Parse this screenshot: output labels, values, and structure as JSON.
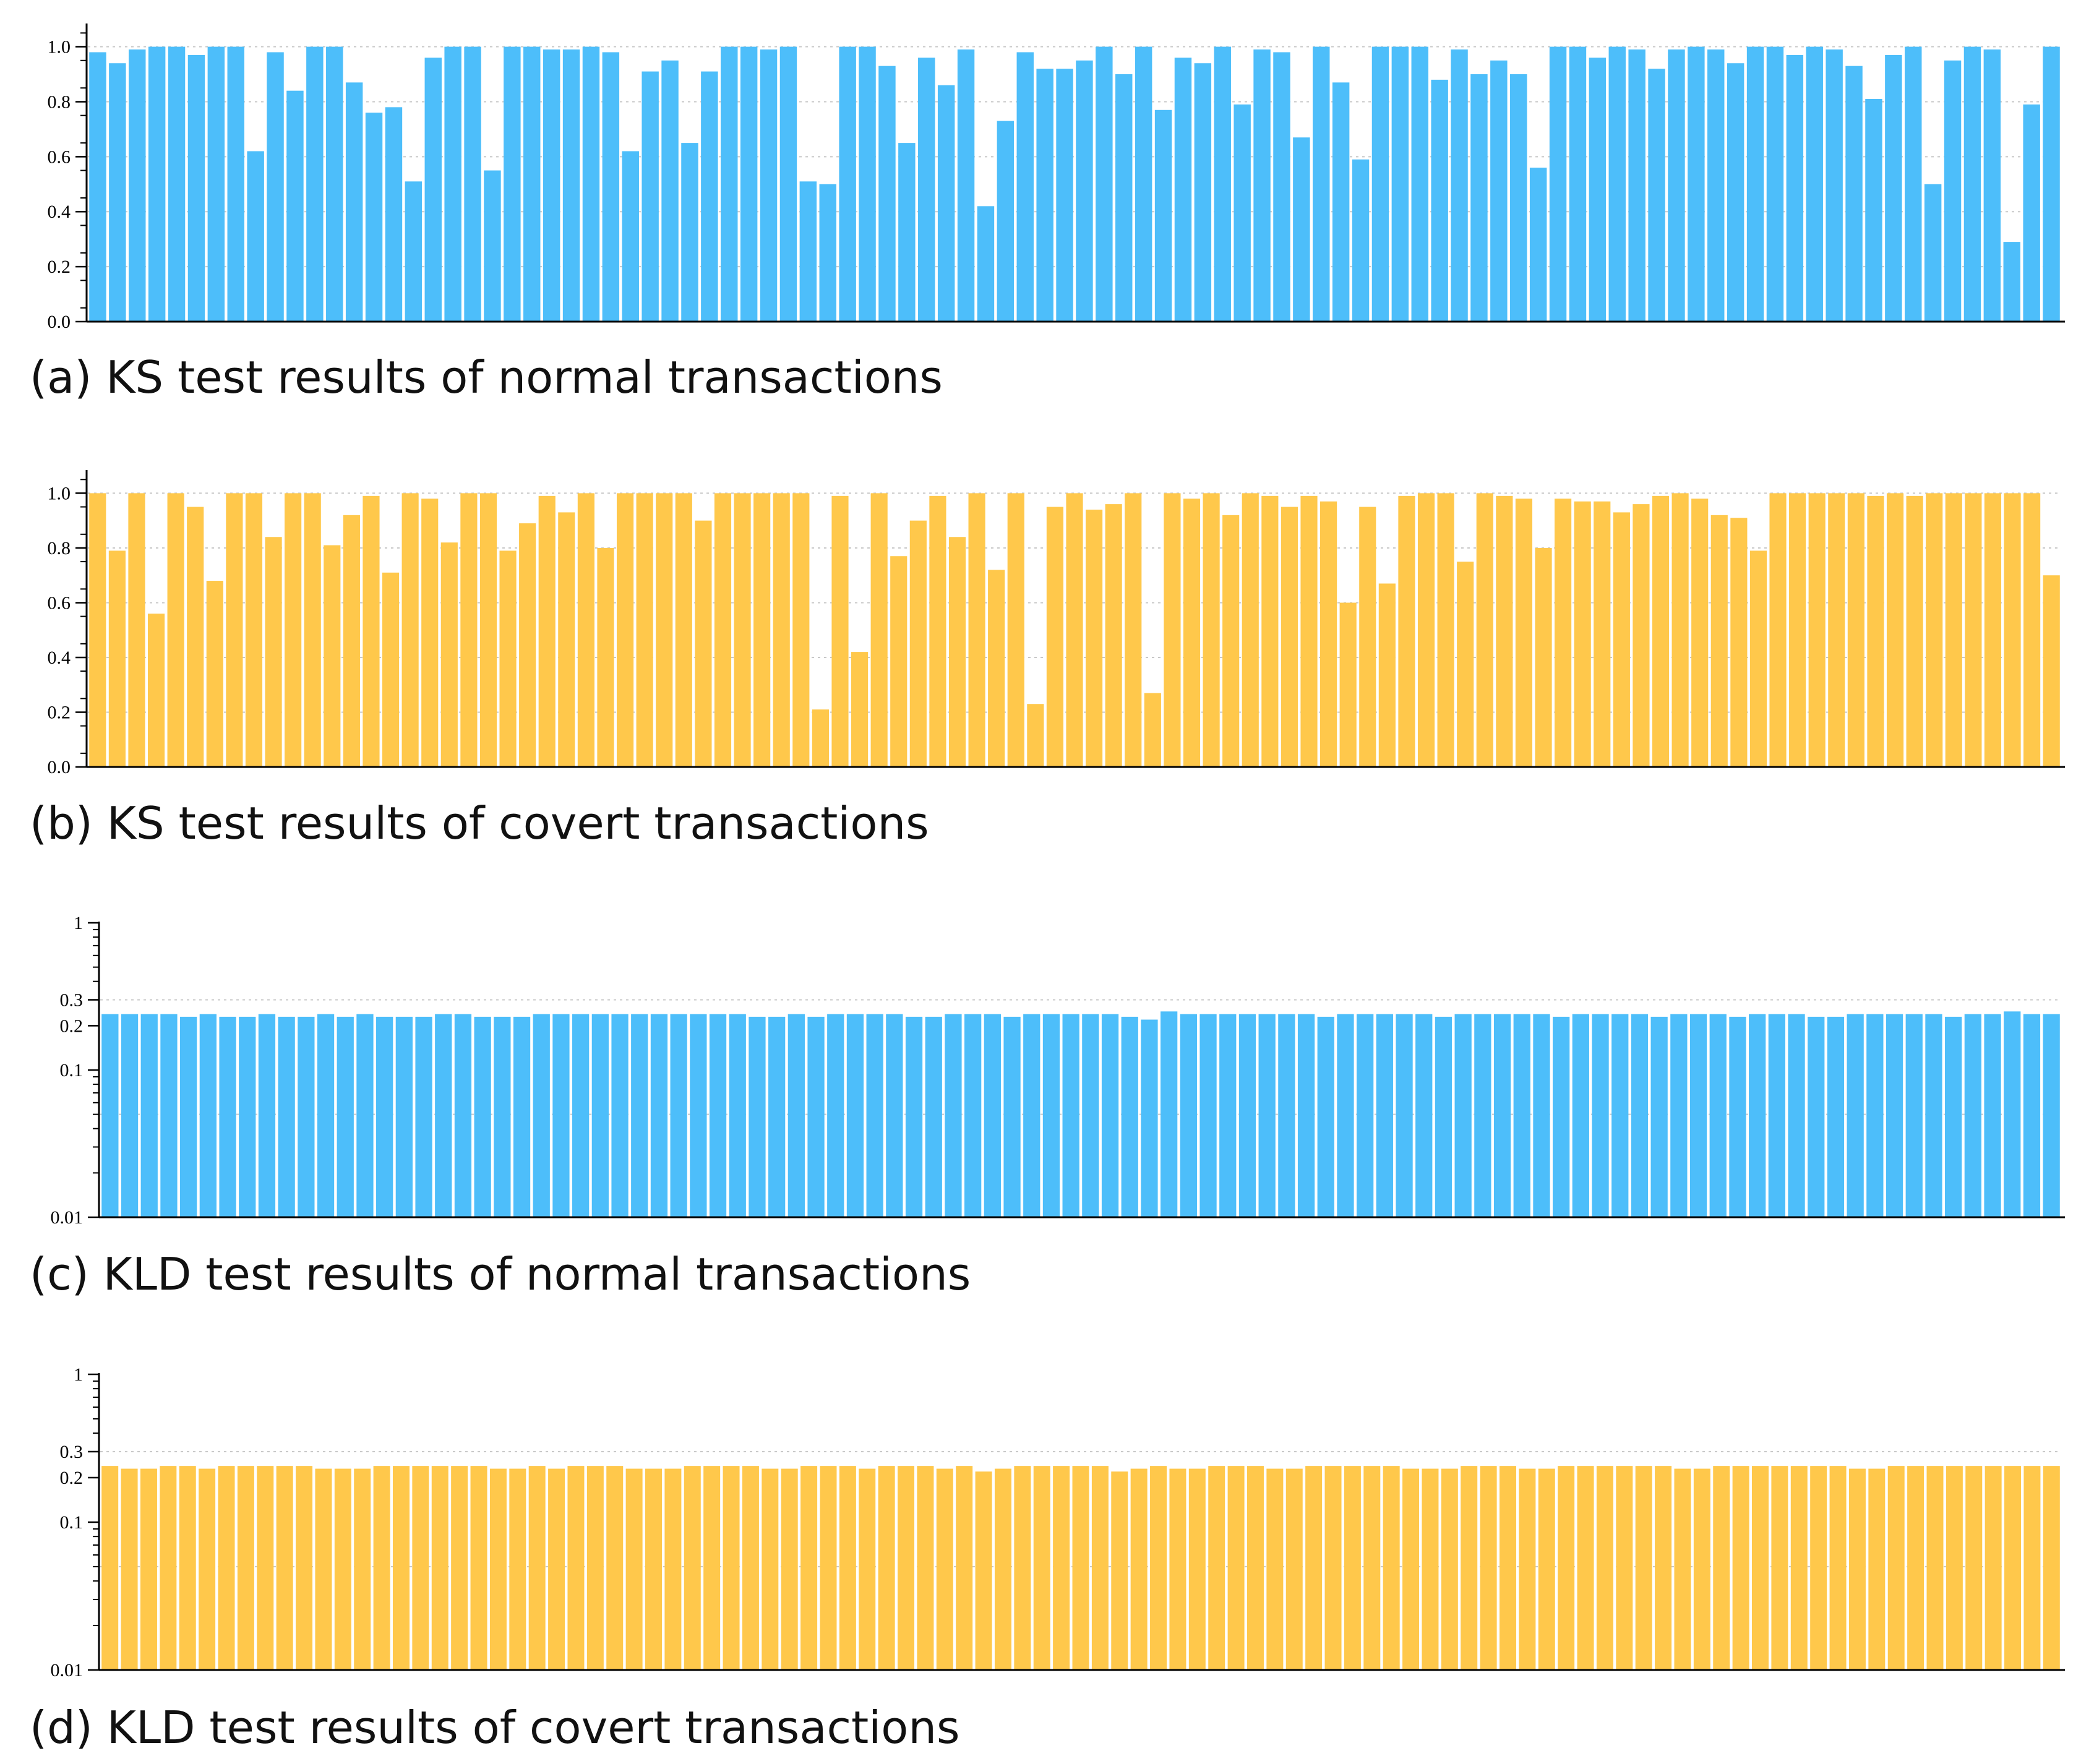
{
  "colors": {
    "blue": "#4DBEFA",
    "yellow": "#FFC84B",
    "axis": "#000000",
    "grid": "#C8C8C8"
  },
  "chart_data": [
    {
      "type": "bar",
      "caption": "(a) KS test results of normal transactions",
      "color": "#4DBEFA",
      "scale": "linear",
      "ylim": [
        0,
        1.08
      ],
      "yticks": [
        "0.0",
        "0.2",
        "0.4",
        "0.6",
        "0.8",
        "1.0"
      ],
      "grid": true,
      "values": [
        0.98,
        0.94,
        0.99,
        1.0,
        1.0,
        0.97,
        1.0,
        1.0,
        0.62,
        0.98,
        0.84,
        1.0,
        1.0,
        0.87,
        0.76,
        0.78,
        0.51,
        0.96,
        1.0,
        1.0,
        0.55,
        1.0,
        1.0,
        0.99,
        0.99,
        1.0,
        0.98,
        0.62,
        0.91,
        0.95,
        0.65,
        0.91,
        1.0,
        1.0,
        0.99,
        1.0,
        0.51,
        0.5,
        1.0,
        1.0,
        0.93,
        0.65,
        0.96,
        0.86,
        0.99,
        0.42,
        0.73,
        0.98,
        0.92,
        0.92,
        0.95,
        1.0,
        0.9,
        1.0,
        0.77,
        0.96,
        0.94,
        1.0,
        0.79,
        0.99,
        0.98,
        0.67,
        1.0,
        0.87,
        0.59,
        1.0,
        1.0,
        1.0,
        0.88,
        0.99,
        0.9,
        0.95,
        0.9,
        0.56,
        1.0,
        1.0,
        0.96,
        1.0,
        0.99,
        0.92,
        0.99,
        1.0,
        0.99,
        0.94,
        1.0,
        1.0,
        0.97,
        1.0,
        0.99,
        0.93,
        0.81,
        0.97,
        1.0,
        0.5,
        0.95,
        1.0,
        0.99,
        0.29,
        0.79,
        1.0
      ]
    },
    {
      "type": "bar",
      "caption": "(b) KS test results of covert transactions",
      "color": "#FFC84B",
      "scale": "linear",
      "ylim": [
        0,
        1.08
      ],
      "yticks": [
        "0.0",
        "0.2",
        "0.4",
        "0.6",
        "0.8",
        "1.0"
      ],
      "grid": true,
      "values": [
        1.0,
        0.79,
        1.0,
        0.56,
        1.0,
        0.95,
        0.68,
        1.0,
        1.0,
        0.84,
        1.0,
        1.0,
        0.81,
        0.92,
        0.99,
        0.71,
        1.0,
        0.98,
        0.82,
        1.0,
        1.0,
        0.79,
        0.89,
        0.99,
        0.93,
        1.0,
        0.8,
        1.0,
        1.0,
        1.0,
        1.0,
        0.9,
        1.0,
        1.0,
        1.0,
        1.0,
        1.0,
        0.21,
        0.99,
        0.42,
        1.0,
        0.77,
        0.9,
        0.99,
        0.84,
        1.0,
        0.72,
        1.0,
        0.23,
        0.95,
        1.0,
        0.94,
        0.96,
        1.0,
        0.27,
        1.0,
        0.98,
        1.0,
        0.92,
        1.0,
        0.99,
        0.95,
        0.99,
        0.97,
        0.6,
        0.95,
        0.67,
        0.99,
        1.0,
        1.0,
        0.75,
        1.0,
        0.99,
        0.98,
        0.8,
        0.98,
        0.97,
        0.97,
        0.93,
        0.96,
        0.99,
        1.0,
        0.98,
        0.92,
        0.91,
        0.79,
        1.0,
        1.0,
        1.0,
        1.0,
        1.0,
        0.99,
        1.0,
        0.99,
        1.0,
        1.0,
        1.0,
        1.0,
        1.0,
        1.0,
        0.7
      ]
    },
    {
      "type": "bar",
      "caption": "(c) KLD test results of normal transactions",
      "color": "#4DBEFA",
      "scale": "log",
      "ylim": [
        0.01,
        1
      ],
      "yticks": [
        "0.01",
        "0.1",
        "0.2",
        "0.3",
        "1"
      ],
      "grid": true,
      "values": [
        0.24,
        0.24,
        0.24,
        0.24,
        0.23,
        0.24,
        0.23,
        0.23,
        0.24,
        0.23,
        0.23,
        0.24,
        0.23,
        0.24,
        0.23,
        0.23,
        0.23,
        0.24,
        0.24,
        0.23,
        0.23,
        0.23,
        0.24,
        0.24,
        0.24,
        0.24,
        0.24,
        0.24,
        0.24,
        0.24,
        0.24,
        0.24,
        0.24,
        0.23,
        0.23,
        0.24,
        0.23,
        0.24,
        0.24,
        0.24,
        0.24,
        0.23,
        0.23,
        0.24,
        0.24,
        0.24,
        0.23,
        0.24,
        0.24,
        0.24,
        0.24,
        0.24,
        0.23,
        0.22,
        0.25,
        0.24,
        0.24,
        0.24,
        0.24,
        0.24,
        0.24,
        0.24,
        0.23,
        0.24,
        0.24,
        0.24,
        0.24,
        0.24,
        0.23,
        0.24,
        0.24,
        0.24,
        0.24,
        0.24,
        0.23,
        0.24,
        0.24,
        0.24,
        0.24,
        0.23,
        0.24,
        0.24,
        0.24,
        0.23,
        0.24,
        0.24,
        0.24,
        0.23,
        0.23,
        0.24,
        0.24,
        0.24,
        0.24,
        0.24,
        0.23,
        0.24,
        0.24,
        0.25,
        0.24,
        0.24
      ]
    },
    {
      "type": "bar",
      "caption": "(d) KLD test results of covert transactions",
      "color": "#FFC84B",
      "scale": "log",
      "ylim": [
        0.01,
        1
      ],
      "yticks": [
        "0.01",
        "0.1",
        "0.2",
        "0.3",
        "1"
      ],
      "grid": true,
      "values": [
        0.24,
        0.23,
        0.23,
        0.24,
        0.24,
        0.23,
        0.24,
        0.24,
        0.24,
        0.24,
        0.24,
        0.23,
        0.23,
        0.23,
        0.24,
        0.24,
        0.24,
        0.24,
        0.24,
        0.24,
        0.23,
        0.23,
        0.24,
        0.23,
        0.24,
        0.24,
        0.24,
        0.23,
        0.23,
        0.23,
        0.24,
        0.24,
        0.24,
        0.24,
        0.23,
        0.23,
        0.24,
        0.24,
        0.24,
        0.23,
        0.24,
        0.24,
        0.24,
        0.23,
        0.24,
        0.22,
        0.23,
        0.24,
        0.24,
        0.24,
        0.24,
        0.24,
        0.22,
        0.23,
        0.24,
        0.23,
        0.23,
        0.24,
        0.24,
        0.24,
        0.23,
        0.23,
        0.24,
        0.24,
        0.24,
        0.24,
        0.24,
        0.23,
        0.23,
        0.23,
        0.24,
        0.24,
        0.24,
        0.23,
        0.23,
        0.24,
        0.24,
        0.24,
        0.24,
        0.24,
        0.24,
        0.23,
        0.23,
        0.24,
        0.24,
        0.24,
        0.24,
        0.24,
        0.24,
        0.24,
        0.23,
        0.23,
        0.24,
        0.24,
        0.24,
        0.24,
        0.24,
        0.24,
        0.24,
        0.24,
        0.24
      ]
    }
  ]
}
